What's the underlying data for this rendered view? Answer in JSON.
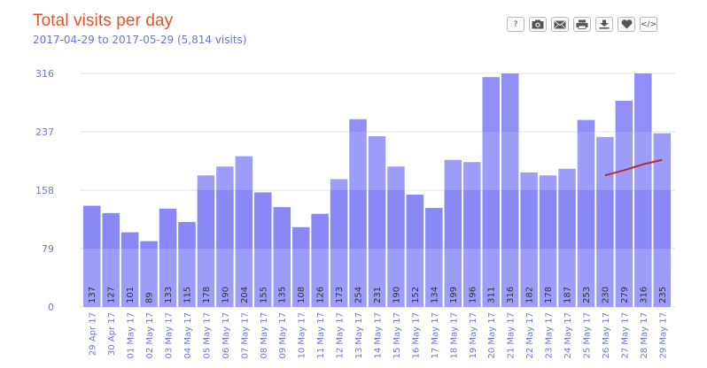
{
  "header": {
    "title": "Total visits per day",
    "subtitle": "2017-04-29 to 2017-05-29 (5,814 visits)"
  },
  "toolbar": {
    "items": [
      {
        "name": "help-button",
        "icon": "question-icon",
        "label": "?"
      },
      {
        "name": "screenshot-button",
        "icon": "camera-icon",
        "label": ""
      },
      {
        "name": "email-button",
        "icon": "envelope-icon",
        "label": ""
      },
      {
        "name": "print-button",
        "icon": "printer-icon",
        "label": ""
      },
      {
        "name": "download-button",
        "icon": "download-icon",
        "label": ""
      },
      {
        "name": "favorite-button",
        "icon": "heart-icon",
        "label": ""
      },
      {
        "name": "embed-button",
        "icon": "code-icon",
        "label": "</>"
      }
    ]
  },
  "colors": {
    "title": "#e8512a",
    "axis_text": "#7078cc",
    "bar": "#9d9cf8",
    "bar_highlight": "#7a79f5",
    "trend_line": "#b0303a"
  },
  "chart_data": {
    "type": "bar",
    "categories": [
      "29 Apr 17",
      "30 Apr 17",
      "01 May 17",
      "02 May 17",
      "03 May 17",
      "04 May 17",
      "05 May 17",
      "06 May 17",
      "07 May 17",
      "08 May 17",
      "09 May 17",
      "10 May 17",
      "11 May 17",
      "12 May 17",
      "13 May 17",
      "14 May 17",
      "15 May 17",
      "16 May 17",
      "17 May 17",
      "18 May 17",
      "19 May 17",
      "20 May 17",
      "21 May 17",
      "22 May 17",
      "23 May 17",
      "24 May 17",
      "25 May 17",
      "26 May 17",
      "27 May 17",
      "28 May 17",
      "29 May 17"
    ],
    "values": [
      137,
      127,
      101,
      89,
      133,
      115,
      178,
      190,
      204,
      155,
      135,
      108,
      126,
      173,
      254,
      231,
      190,
      152,
      134,
      199,
      196,
      311,
      316,
      182,
      178,
      187,
      253,
      230,
      279,
      316,
      235
    ],
    "data_labels": [
      "137",
      "127",
      "101",
      "89",
      "133",
      "115",
      "178",
      "190",
      "204",
      "155",
      "135",
      "108",
      "126",
      "173",
      "254",
      "231",
      "190",
      "152",
      "134",
      "199",
      "196",
      "311",
      "316",
      "182",
      "178",
      "187",
      "253",
      "230",
      "279",
      "316",
      "235"
    ],
    "yticks": [
      0,
      79,
      158,
      237,
      316
    ],
    "ytick_labels": [
      "0",
      "79",
      "158",
      "237",
      "316"
    ],
    "ylim": [
      0,
      316
    ],
    "grid": true,
    "trend_line": {
      "x": [
        "26 May 17",
        "27 May 17",
        "28 May 17",
        "29 May 17"
      ],
      "y": [
        178,
        185,
        193,
        199
      ]
    }
  }
}
